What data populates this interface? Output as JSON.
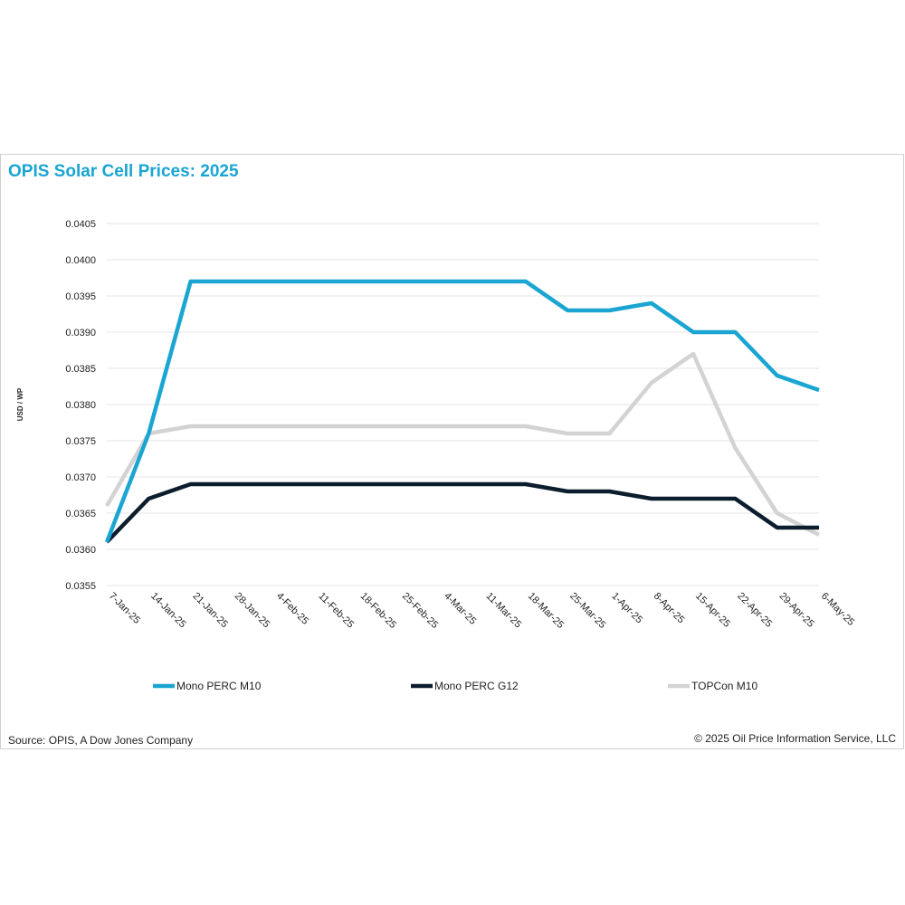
{
  "header": {
    "title": "OPIS Solar Cell Prices: 2025"
  },
  "footer": {
    "source": "Source: OPIS, A Dow Jones Company",
    "copyright": "© 2025 Oil Price Information Service, LLC"
  },
  "colors": {
    "title": "#1aa5d2",
    "grid": "#e6e6e6"
  },
  "chart_data": {
    "type": "line",
    "title": "OPIS Solar Cell Prices: 2025",
    "ylabel": "USD / WP",
    "xlabel": "",
    "ylim": [
      0.0355,
      0.0405
    ],
    "y_ticks": [
      "0.0355",
      "0.0360",
      "0.0365",
      "0.0370",
      "0.0375",
      "0.0380",
      "0.0385",
      "0.0390",
      "0.0395",
      "0.0400",
      "0.0405"
    ],
    "grid": true,
    "legend_position": "bottom",
    "categories": [
      "7-Jan-25",
      "14-Jan-25",
      "21-Jan-25",
      "28-Jan-25",
      "4-Feb-25",
      "11-Feb-25",
      "18-Feb-25",
      "25-Feb-25",
      "4-Mar-25",
      "11-Mar-25",
      "18-Mar-25",
      "25-Mar-25",
      "1-Apr-25",
      "8-Apr-25",
      "15-Apr-25",
      "22-Apr-25",
      "29-Apr-25",
      "6-May-25"
    ],
    "series": [
      {
        "name": "Mono PERC M10",
        "color": "#1aa5d2",
        "values": [
          0.0361,
          0.0376,
          0.0397,
          0.0397,
          0.0397,
          0.0397,
          0.0397,
          0.0397,
          0.0397,
          0.0397,
          0.0397,
          0.0393,
          0.0393,
          0.0394,
          0.039,
          0.039,
          0.0384,
          0.0382
        ]
      },
      {
        "name": "Mono PERC G12",
        "color": "#0c1d2e",
        "values": [
          0.0361,
          0.0367,
          0.0369,
          0.0369,
          0.0369,
          0.0369,
          0.0369,
          0.0369,
          0.0369,
          0.0369,
          0.0369,
          0.0368,
          0.0368,
          0.0367,
          0.0367,
          0.0367,
          0.0363,
          0.0363
        ]
      },
      {
        "name": "TOPCon M10",
        "color": "#d3d3d3",
        "values": [
          0.0366,
          0.0376,
          0.0377,
          0.0377,
          0.0377,
          0.0377,
          0.0377,
          0.0377,
          0.0377,
          0.0377,
          0.0377,
          0.0376,
          0.0376,
          0.0383,
          0.0387,
          0.0374,
          0.0365,
          0.0362
        ]
      }
    ]
  }
}
